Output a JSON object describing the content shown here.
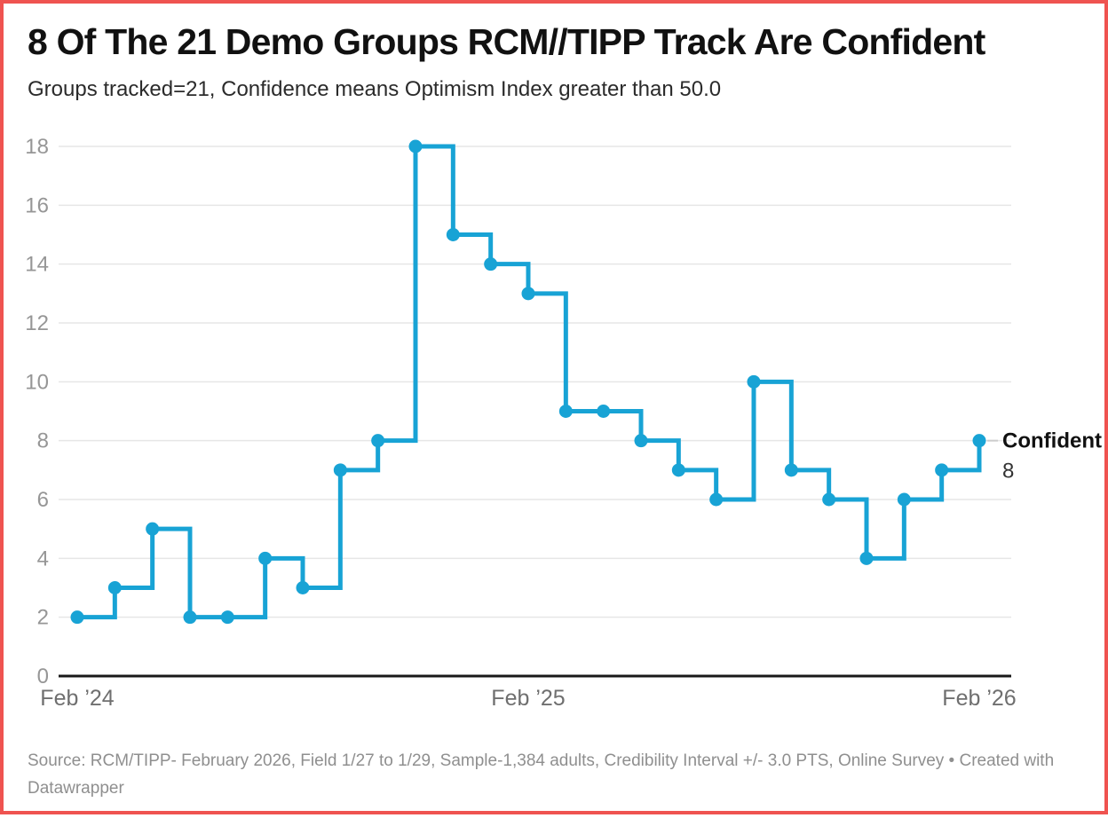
{
  "header": {
    "title": "8 Of The 21 Demo Groups RCM//TIPP Track Are Confident",
    "subtitle": "Groups tracked=21, Confidence means Optimism Index greater than 50.0"
  },
  "footer": {
    "source": "Source: RCM/TIPP- February 2026, Field 1/27 to 1/29, Sample-1,384 adults, Credibility Interval +/- 3.0 PTS, Online Survey • Created with Datawrapper"
  },
  "colors": {
    "accent_line": "#18a3d5",
    "frame_border": "#ef5350",
    "gridline": "#e6e6e6",
    "axis_line": "#181818",
    "y_tick_label": "#969696",
    "x_tick_label": "#6f6f6f",
    "end_label_text": "#111111",
    "end_label_value": "#333333",
    "connector": "#cccccc"
  },
  "chart_data": {
    "type": "line",
    "subtype": "step-before",
    "title": "8 Of The 21 Demo Groups RCM//TIPP Track Are Confident",
    "subtitle": "Groups tracked=21, Confidence means Optimism Index greater than 50.0",
    "series": [
      {
        "name": "Confident",
        "values": [
          2,
          3,
          5,
          2,
          2,
          4,
          3,
          7,
          8,
          18,
          15,
          14,
          13,
          9,
          9,
          8,
          7,
          6,
          10,
          7,
          6,
          4,
          6,
          7,
          8
        ]
      }
    ],
    "x_tick_labels": [
      {
        "index": 0,
        "label": "Feb ’24"
      },
      {
        "index": 12,
        "label": "Feb ’25"
      },
      {
        "index": 24,
        "label": "Feb ’26"
      }
    ],
    "y_ticks": [
      0,
      2,
      4,
      6,
      8,
      10,
      12,
      14,
      16,
      18
    ],
    "ylim": [
      0,
      18
    ],
    "grid": true,
    "marker": "circle",
    "legend_position": "end-of-line",
    "end_label": {
      "label": "Confident",
      "value": "8"
    }
  }
}
